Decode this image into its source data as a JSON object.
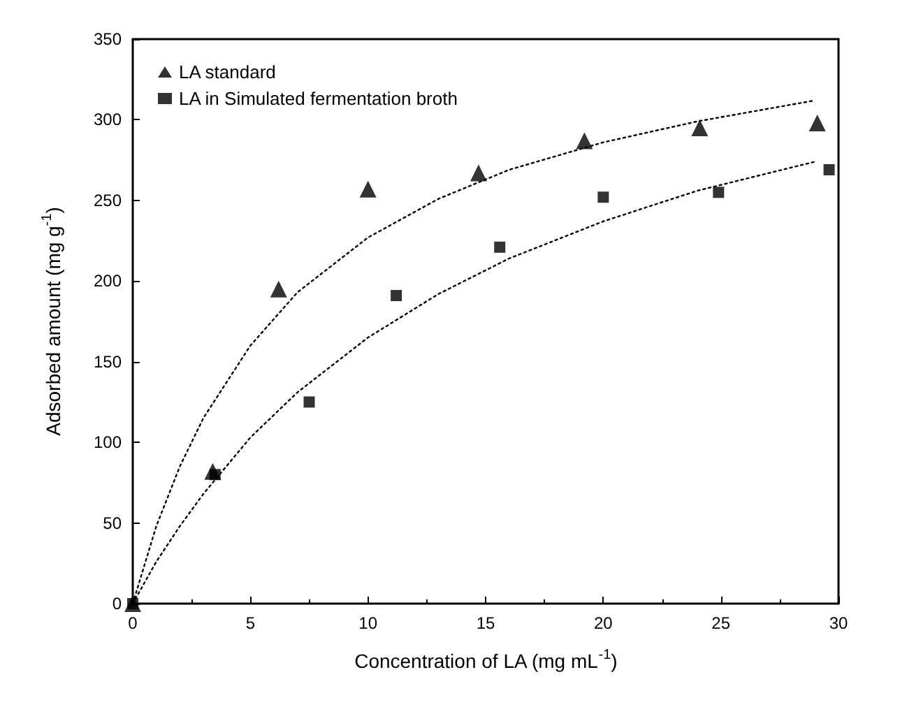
{
  "chart_data": {
    "type": "scatter",
    "xlabel": "Concentration of LA (mg mL$^{-1}$)",
    "ylabel": "Adsorbed amount (mg g$^{-1}$)",
    "xlim": [
      0,
      30
    ],
    "xticks": [
      0,
      5,
      10,
      15,
      20,
      25,
      30
    ],
    "ylim": [
      0,
      350
    ],
    "yticks": [
      0,
      50,
      100,
      150,
      200,
      250,
      300,
      350
    ],
    "grid": false,
    "legend": "top left",
    "series": [
      {
        "name": "LA standard",
        "color": "#000000",
        "marker": "triangle",
        "x": [
          0,
          3.4,
          6.2,
          10.0,
          14.7,
          19.2,
          24.1,
          29.1
        ],
        "values": [
          0,
          82,
          195,
          257,
          267,
          287,
          295,
          298
        ]
      },
      {
        "name": "LA in Simulated fermentation broth",
        "color": "#000000",
        "marker": "square",
        "x": [
          0,
          3.5,
          7.5,
          11.2,
          15.6,
          20.0,
          24.9,
          29.6
        ],
        "values": [
          0,
          80,
          125,
          191,
          221,
          252,
          255,
          269
        ]
      },
      {
        "type": "line",
        "color": "#000000",
        "marker": "none",
        "line_style": "dotted",
        "x": [
          0,
          1,
          2,
          3,
          5,
          7,
          10,
          13,
          16,
          20,
          24,
          29
        ],
        "values": [
          0,
          48,
          85,
          115,
          160,
          193,
          227,
          251,
          269,
          286,
          299,
          312
        ]
      },
      {
        "type": "line",
        "color": "#000000",
        "marker": "none",
        "line_style": "dotted",
        "x": [
          0,
          1,
          2,
          3,
          5,
          7,
          10,
          13,
          16,
          20,
          24,
          29
        ],
        "values": [
          0,
          26,
          48,
          68,
          103,
          131,
          165,
          192,
          214,
          237,
          256,
          274
        ]
      }
    ]
  }
}
